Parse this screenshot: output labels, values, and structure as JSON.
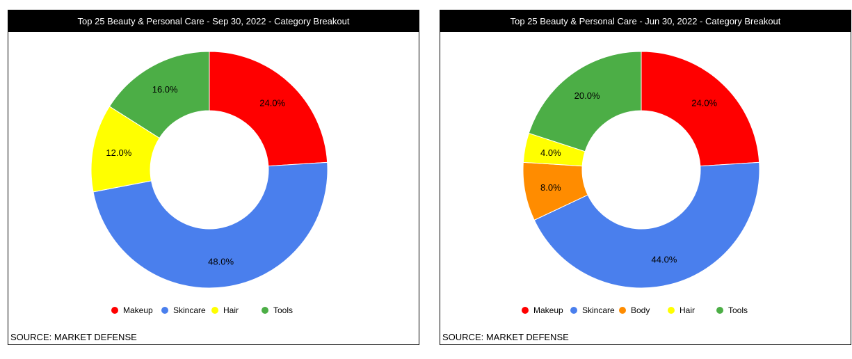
{
  "source_label": "SOURCE: MARKET DEFENSE",
  "chart_data": [
    {
      "type": "pie",
      "donut": true,
      "title": "Top 25 Beauty & Personal Care - Sep 30, 2022 - Category Breakout",
      "legend_position": "bottom",
      "categories": [
        "Makeup",
        "Skincare",
        "Hair",
        "Tools"
      ],
      "values": [
        24.0,
        48.0,
        12.0,
        16.0
      ],
      "labels": [
        "24.0%",
        "48.0%",
        "12.0%",
        "16.0%"
      ],
      "colors": [
        "#ff0000",
        "#4a7fed",
        "#ffff00",
        "#4cae46"
      ]
    },
    {
      "type": "pie",
      "donut": true,
      "title": "Top 25 Beauty & Personal Care - Jun 30, 2022 - Category Breakout",
      "legend_position": "bottom",
      "categories": [
        "Makeup",
        "Skincare",
        "Body",
        "Hair",
        "Tools"
      ],
      "values": [
        24.0,
        44.0,
        8.0,
        4.0,
        20.0
      ],
      "labels": [
        "24.0%",
        "44.0%",
        "8.0%",
        "4.0%",
        "20.0%"
      ],
      "colors": [
        "#ff0000",
        "#4a7fed",
        "#ff8c00",
        "#ffff00",
        "#4cae46"
      ]
    }
  ]
}
